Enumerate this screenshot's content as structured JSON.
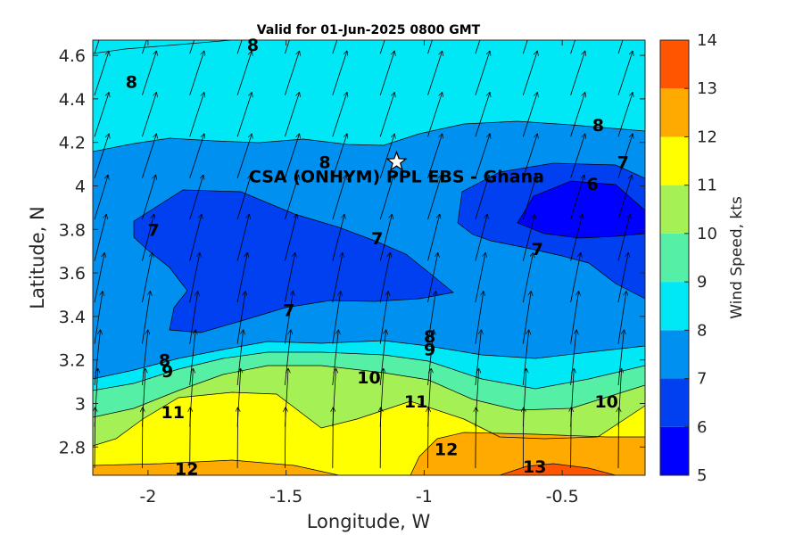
{
  "chart_data": {
    "type": "contour",
    "title": "Valid for 01-Jun-2025 0800 GMT",
    "xlabel": "Longitude, W",
    "ylabel": "Latitude, N",
    "xlim": [
      -2.2,
      -0.2
    ],
    "ylim": [
      2.67,
      4.67
    ],
    "xticks": [
      -2,
      -1.5,
      -1,
      -0.5
    ],
    "xtick_labels": [
      "-2",
      "-1.5",
      "-1",
      "-0.5"
    ],
    "yticks": [
      2.8,
      3.0,
      3.2,
      3.4,
      3.6,
      3.8,
      4.0,
      4.2,
      4.4,
      4.6
    ],
    "ytick_labels": [
      "2.8",
      "3",
      "3.2",
      "3.4",
      "3.6",
      "3.8",
      "4",
      "4.2",
      "4.4",
      "4.6"
    ],
    "colorbar": {
      "label": "Wind Speed, kts",
      "range": [
        5,
        14
      ],
      "ticks": [
        "5",
        "6",
        "7",
        "8",
        "9",
        "10",
        "11",
        "12",
        "13",
        "14"
      ],
      "colors": [
        "#0000ff",
        "#0040f0",
        "#0090f0",
        "#00e8f5",
        "#55f0a5",
        "#a5f055",
        "#ffff00",
        "#ffaa00",
        "#ff5500"
      ]
    },
    "contour_levels": [
      6,
      7,
      8,
      9,
      10,
      11,
      12,
      13
    ],
    "contour_labels": [
      {
        "text": "8",
        "x": -1.62,
        "y": 4.65
      },
      {
        "text": "8",
        "x": -2.06,
        "y": 4.48
      },
      {
        "text": "8",
        "x": -0.37,
        "y": 4.28
      },
      {
        "text": "8",
        "x": -1.36,
        "y": 4.11
      },
      {
        "text": "7",
        "x": -0.28,
        "y": 4.11
      },
      {
        "text": "6",
        "x": -0.39,
        "y": 4.01
      },
      {
        "text": "7",
        "x": -1.98,
        "y": 3.8
      },
      {
        "text": "7",
        "x": -1.17,
        "y": 3.76
      },
      {
        "text": "7",
        "x": -0.59,
        "y": 3.71
      },
      {
        "text": "7",
        "x": -1.49,
        "y": 3.43
      },
      {
        "text": "8",
        "x": -0.98,
        "y": 3.31
      },
      {
        "text": "9",
        "x": -0.98,
        "y": 3.25
      },
      {
        "text": "8",
        "x": -1.94,
        "y": 3.2
      },
      {
        "text": "9",
        "x": -1.93,
        "y": 3.15
      },
      {
        "text": "10",
        "x": -1.2,
        "y": 3.12
      },
      {
        "text": "11",
        "x": -1.91,
        "y": 2.96
      },
      {
        "text": "11",
        "x": -1.03,
        "y": 3.01
      },
      {
        "text": "10",
        "x": -0.34,
        "y": 3.01
      },
      {
        "text": "12",
        "x": -0.92,
        "y": 2.79
      },
      {
        "text": "12",
        "x": -1.86,
        "y": 2.7
      },
      {
        "text": "13",
        "x": -0.6,
        "y": 2.71
      }
    ],
    "site": {
      "name": "CSA (ONHYM) PPL EBS  - Ghana",
      "marker": "star",
      "lon": -1.1,
      "lat": 4.11
    },
    "wind_field": {
      "dominant_direction_north": "SSW (vectors point NNE)",
      "south_direction": "from south (vectors point N)"
    }
  }
}
